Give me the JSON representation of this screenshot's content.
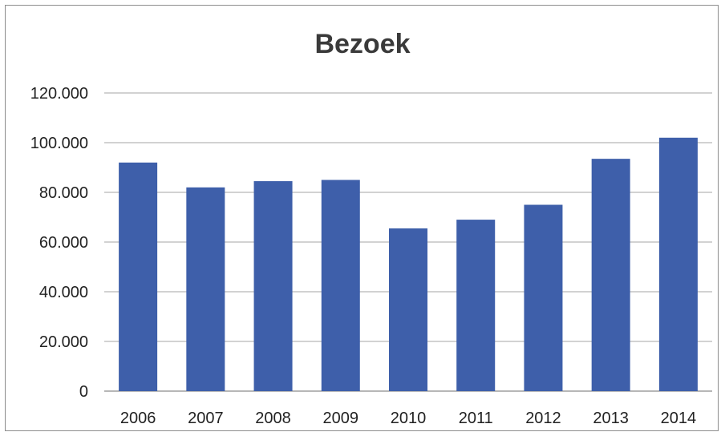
{
  "chart_data": {
    "type": "bar",
    "title": "Bezoek",
    "categories": [
      "2006",
      "2007",
      "2008",
      "2009",
      "2010",
      "2011",
      "2012",
      "2013",
      "2014"
    ],
    "values": [
      92000,
      82000,
      84500,
      85000,
      65500,
      69000,
      75000,
      93500,
      102000
    ],
    "ylim": [
      0,
      120000
    ],
    "yticks": [
      0,
      20000,
      40000,
      60000,
      80000,
      100000,
      120000
    ],
    "ytick_labels": [
      "0",
      "20.000",
      "40.000",
      "60.000",
      "80.000",
      "100.000",
      "120.000"
    ],
    "xlabel": "",
    "ylabel": "",
    "grid": true,
    "legend": "none",
    "colors": {
      "bar": "#3e5faa",
      "grid": "#a6a6a6",
      "axis": "#8c8c8c"
    }
  }
}
